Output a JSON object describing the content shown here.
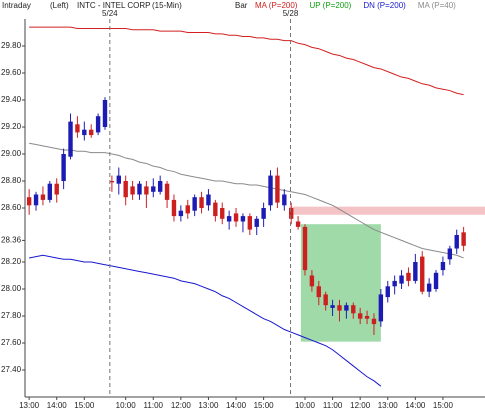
{
  "chart_data": {
    "type": "candlestick",
    "panel": "Intraday",
    "axis_side": "(Left)",
    "title": "INTC - INTEL CORP",
    "subtitle": "(15-Min)",
    "bar_label": "Bar",
    "up_color": "#1c1cb4",
    "down_color": "#cc2020",
    "open": [
      28.68,
      28.62,
      28.7,
      28.66,
      28.78,
      28.8,
      28.98,
      29.22,
      29.14,
      29.18,
      29.16,
      29.2,
      28.8,
      28.78,
      28.8,
      28.76,
      28.7,
      28.76,
      28.72,
      28.72,
      28.78,
      28.66,
      28.54,
      28.62,
      28.58,
      28.68,
      28.62,
      28.64,
      28.6,
      28.5,
      28.56,
      28.5,
      28.54,
      28.46,
      28.52,
      28.62,
      28.84,
      28.62,
      28.6,
      28.5,
      28.46,
      28.1,
      28.02,
      27.96,
      27.86,
      27.88,
      27.84,
      27.88,
      27.82,
      27.8,
      27.78,
      27.76,
      27.94,
      28.02,
      28.04,
      28.12,
      28.06,
      28.24,
      27.98,
      28.0,
      28.14,
      28.22,
      28.3,
      28.42
    ],
    "high": [
      28.74,
      28.72,
      28.76,
      28.8,
      28.82,
      29.04,
      29.3,
      29.28,
      29.24,
      29.22,
      29.3,
      29.42,
      28.84,
      28.9,
      28.84,
      28.8,
      28.8,
      28.8,
      28.82,
      28.84,
      28.8,
      28.7,
      28.62,
      28.66,
      28.7,
      28.72,
      28.74,
      28.66,
      28.64,
      28.58,
      28.6,
      28.56,
      28.56,
      28.54,
      28.64,
      28.88,
      28.9,
      28.74,
      28.64,
      28.54,
      28.48,
      28.14,
      28.06,
      27.98,
      27.92,
      27.92,
      27.9,
      27.9,
      27.86,
      27.84,
      27.82,
      28.0,
      28.06,
      28.1,
      28.14,
      28.16,
      28.26,
      28.28,
      28.08,
      28.14,
      28.24,
      28.32,
      28.44,
      28.46
    ],
    "low": [
      28.55,
      28.58,
      28.62,
      28.64,
      28.64,
      28.74,
      28.96,
      29.12,
      29.1,
      29.12,
      29.14,
      29.18,
      28.72,
      28.7,
      28.62,
      28.66,
      28.66,
      28.6,
      28.68,
      28.7,
      28.6,
      28.5,
      28.5,
      28.52,
      28.54,
      28.56,
      28.58,
      28.5,
      28.48,
      28.44,
      28.46,
      28.42,
      28.4,
      28.4,
      28.46,
      28.58,
      28.6,
      28.58,
      28.48,
      28.44,
      28.1,
      27.98,
      27.88,
      27.84,
      27.8,
      27.76,
      27.78,
      27.78,
      27.74,
      27.74,
      27.66,
      27.72,
      27.9,
      27.96,
      28.0,
      28.02,
      28.04,
      27.96,
      27.94,
      27.98,
      28.1,
      28.18,
      28.26,
      28.28
    ],
    "close": [
      28.62,
      28.7,
      28.66,
      28.78,
      28.7,
      29.0,
      29.24,
      29.16,
      29.18,
      29.14,
      29.28,
      29.4,
      28.79,
      28.84,
      28.68,
      28.7,
      28.78,
      28.7,
      28.76,
      28.8,
      28.66,
      28.54,
      28.58,
      28.56,
      28.68,
      28.6,
      28.7,
      28.54,
      28.52,
      28.54,
      28.5,
      28.54,
      28.44,
      28.52,
      28.6,
      28.84,
      28.64,
      28.7,
      28.52,
      28.46,
      28.14,
      28.02,
      27.94,
      27.88,
      27.88,
      27.84,
      27.88,
      27.82,
      27.78,
      27.78,
      27.74,
      27.96,
      28.02,
      28.06,
      28.1,
      28.06,
      28.2,
      27.98,
      28.04,
      28.12,
      28.2,
      28.3,
      28.4,
      28.32
    ],
    "series": [
      {
        "name": "MA (P=200)",
        "color": "#d42020",
        "values": [
          29.94,
          29.94,
          29.94,
          29.94,
          29.94,
          29.94,
          29.94,
          29.93,
          29.93,
          29.93,
          29.93,
          29.93,
          29.93,
          29.93,
          29.93,
          29.92,
          29.92,
          29.92,
          29.92,
          29.91,
          29.91,
          29.91,
          29.91,
          29.9,
          29.9,
          29.9,
          29.9,
          29.89,
          29.89,
          29.88,
          29.88,
          29.87,
          29.87,
          29.86,
          29.86,
          29.85,
          29.85,
          29.84,
          29.84,
          29.82,
          29.81,
          29.79,
          29.78,
          29.76,
          29.74,
          29.73,
          29.71,
          29.7,
          29.68,
          29.66,
          29.64,
          29.63,
          29.61,
          29.59,
          29.57,
          29.56,
          29.54,
          29.52,
          29.51,
          29.49,
          29.48,
          29.47,
          29.45,
          29.44
        ]
      },
      {
        "name": "UP (P=200)",
        "color": "#10a010"
      },
      {
        "name": "DN (P=200)",
        "color": "#1818d0",
        "values": [
          28.23,
          28.24,
          28.25,
          28.24,
          28.23,
          28.22,
          28.22,
          28.21,
          28.2,
          28.2,
          28.19,
          28.18,
          28.17,
          28.16,
          28.15,
          28.14,
          28.13,
          28.12,
          28.11,
          28.1,
          28.09,
          28.08,
          28.06,
          28.05,
          28.04,
          28.02,
          28.0,
          27.98,
          27.95,
          27.93,
          27.9,
          27.87,
          27.84,
          27.81,
          27.78,
          27.76,
          27.73,
          27.7,
          27.68,
          27.66,
          27.64,
          27.62,
          27.6,
          27.58,
          27.55,
          27.51,
          27.47,
          27.43,
          27.39,
          27.35,
          27.32,
          27.28,
          null,
          null,
          null,
          null,
          null,
          null,
          null,
          null,
          null,
          null,
          null,
          null
        ]
      },
      {
        "name": "MA (P=40)",
        "color": "#8a8a8a",
        "values": [
          29.08,
          29.07,
          29.06,
          29.05,
          29.04,
          29.03,
          29.03,
          29.02,
          29.02,
          29.01,
          29.01,
          29.01,
          29.0,
          28.99,
          28.97,
          28.96,
          28.94,
          28.93,
          28.91,
          28.9,
          28.88,
          28.87,
          28.85,
          28.84,
          28.83,
          28.82,
          28.81,
          28.8,
          28.8,
          28.79,
          28.78,
          28.78,
          28.77,
          28.77,
          28.76,
          28.75,
          28.74,
          28.73,
          28.72,
          28.71,
          28.7,
          28.68,
          28.66,
          28.64,
          28.62,
          28.59,
          28.56,
          28.53,
          28.5,
          28.47,
          28.44,
          28.42,
          28.4,
          28.38,
          28.36,
          28.34,
          28.32,
          28.3,
          28.29,
          28.28,
          28.27,
          28.26,
          28.25,
          28.23
        ]
      }
    ],
    "date_markers": [
      {
        "x": 11.7,
        "label": "5/24"
      },
      {
        "x": 37.9,
        "label": "5/28"
      }
    ],
    "highlights": [
      {
        "x": [
          37.7,
          66.1
        ],
        "y": [
          28.55,
          28.61
        ],
        "color": "#f2b8bc"
      },
      {
        "x": [
          39.4,
          51
        ],
        "y": [
          27.61,
          28.48
        ],
        "color": "#8fd49a"
      }
    ],
    "xlim": [
      -0.6,
      66.1
    ],
    "ylim": [
      27.2,
      30.0
    ],
    "xticks": [
      {
        "value": 0,
        "label": "13:00"
      },
      {
        "value": 4,
        "label": "14:00"
      },
      {
        "value": 8,
        "label": "15:00"
      },
      {
        "value": 14,
        "label": "10:00"
      },
      {
        "value": 18,
        "label": "11:00"
      },
      {
        "value": 22,
        "label": "12:00"
      },
      {
        "value": 26,
        "label": "13:00"
      },
      {
        "value": 30,
        "label": "14:00"
      },
      {
        "value": 34,
        "label": "15:00"
      },
      {
        "value": 40,
        "label": "10:00"
      },
      {
        "value": 44,
        "label": "11:00"
      },
      {
        "value": 48,
        "label": "12:00"
      },
      {
        "value": 52,
        "label": "13:00"
      },
      {
        "value": 56,
        "label": "14:00"
      },
      {
        "value": 60,
        "label": "15:00"
      }
    ],
    "yticks": [
      {
        "value": 27.4,
        "label": "27.40"
      },
      {
        "value": 27.6,
        "label": "27.60"
      },
      {
        "value": 27.8,
        "label": "27.80"
      },
      {
        "value": 28.0,
        "label": "28.00"
      },
      {
        "value": 28.2,
        "label": "28.20"
      },
      28.36,
      {
        "value": 28.6,
        "label": "28.60"
      },
      {
        "value": 28.8,
        "label": "28.80"
      },
      {
        "value": 29.0,
        "label": "29.00"
      },
      {
        "value": 29.2,
        "label": "29.20"
      },
      {
        "value": 29.4,
        "label": "29.40"
      },
      {
        "value": 29.6,
        "label": "29.60"
      },
      {
        "value": 29.8,
        "label": "29.80"
      }
    ]
  }
}
